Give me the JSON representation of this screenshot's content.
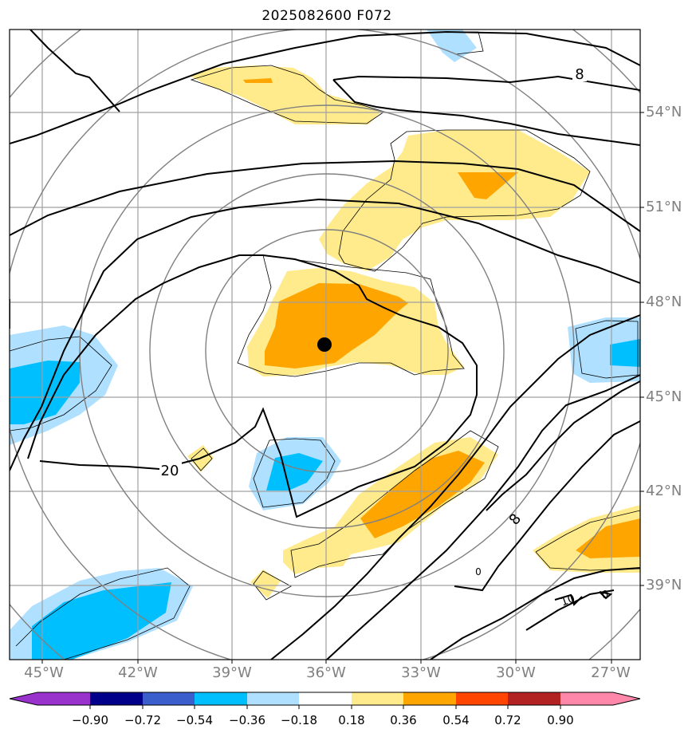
{
  "title": "2025082600 F072",
  "lat_labels": [
    "54°N",
    "51°N",
    "48°N",
    "45°N",
    "42°N",
    "39°N"
  ],
  "lon_labels": [
    "45°W",
    "42°W",
    "39°W",
    "36°W",
    "33°W",
    "30°W",
    "27°W"
  ],
  "contour_labels": [
    "8",
    "20",
    "8",
    "0",
    "10",
    "0"
  ],
  "colorbar": {
    "tick_labels": [
      "−0.90",
      "−0.72",
      "−0.54",
      "−0.36",
      "−0.18",
      "0.18",
      "0.36",
      "0.54",
      "0.72",
      "0.90"
    ],
    "colors": [
      "#9932cc",
      "#00008b",
      "#3a5fcd",
      "#00bfff",
      "#b0e0ff",
      "#ffffff",
      "#ffeb8c",
      "#ffa500",
      "#ff4500",
      "#b22222",
      "#ff88aa"
    ]
  },
  "colors": {
    "grid": "#a0a0a0",
    "thin_contour": "#808080",
    "thick_contour": "#000000",
    "center_marker": "#000000"
  }
}
